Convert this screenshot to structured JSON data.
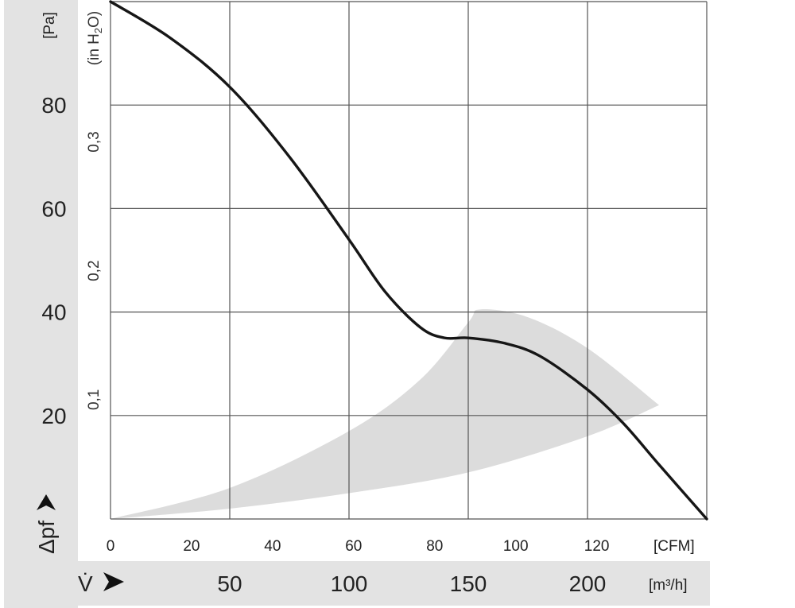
{
  "chart_data": {
    "type": "line",
    "pa_unit": "[Pa]",
    "inh2o_unit": "(in H",
    "inh2o_sub": "2",
    "inh2o_close": "O)",
    "cfm_unit": "[CFM]",
    "m3h_unit": "[m³/h]",
    "ylabel_symbol": "Δpf",
    "xlabel_symbol": "V̇",
    "cfm_ticks": [
      "0",
      "20",
      "40",
      "60",
      "80",
      "100",
      "120"
    ],
    "m3h_ticks": [
      "50",
      "100",
      "150",
      "200"
    ],
    "pa_ticks": [
      "80",
      "60",
      "40",
      "20"
    ],
    "inh2o_ticks": [
      "0,3",
      "0,2",
      "0,1"
    ],
    "xlim_m3h": [
      0,
      250
    ],
    "ylim_pa": [
      0,
      100
    ],
    "grid": true,
    "series": [
      {
        "x_m3h": [
          0,
          25,
          50,
          75,
          100,
          115,
          130,
          140,
          150,
          165,
          180,
          200,
          215,
          230,
          250
        ],
        "y_pa": [
          100,
          93,
          83.5,
          70,
          54,
          44,
          37,
          35,
          35,
          34,
          31.5,
          25,
          18.5,
          10.5,
          0
        ]
      }
    ],
    "operating_zone": {
      "color": "#dcdcdc",
      "upper_x_m3h": [
        0,
        50,
        100,
        130,
        150,
        155,
        175,
        200,
        230
      ],
      "upper_y_pa": [
        0,
        6,
        17,
        27,
        38,
        40.5,
        39,
        33,
        22
      ],
      "lower_x_m3h": [
        230,
        200,
        150,
        100,
        50,
        0
      ],
      "lower_y_pa": [
        22,
        16,
        9,
        5,
        2,
        0
      ]
    }
  }
}
